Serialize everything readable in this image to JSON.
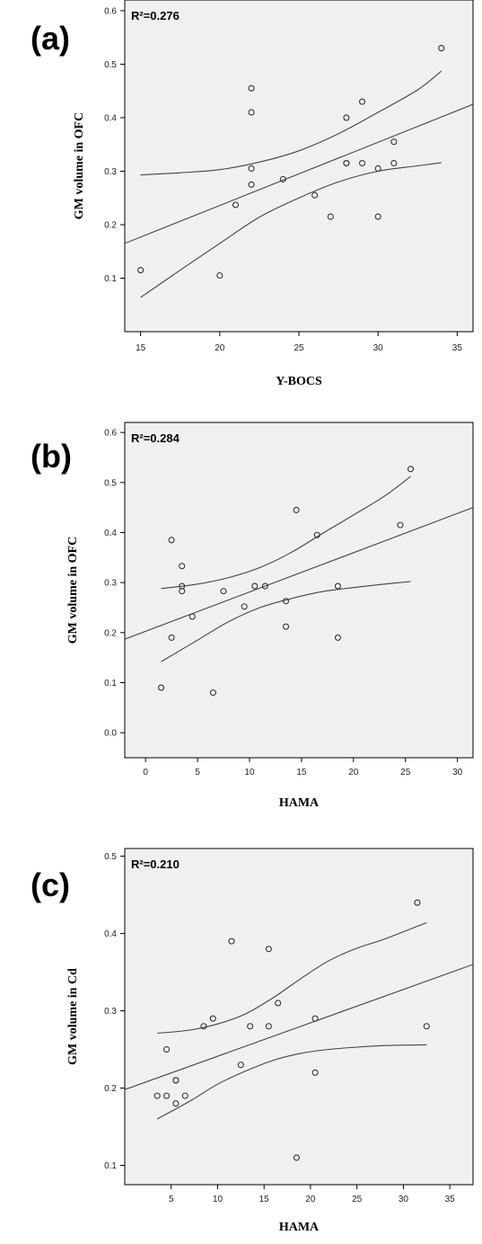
{
  "chart_data": [
    {
      "type": "scatter",
      "panel_label": "(a)",
      "annotation": "R²=0.276",
      "xlabel": "Y-BOCS",
      "ylabel": "GM volume in OFC",
      "xlim": [
        14,
        36
      ],
      "ylim": [
        0.0,
        0.62
      ],
      "xticks": [
        15,
        20,
        25,
        30,
        35
      ],
      "yticks": [
        0.1,
        0.2,
        0.3,
        0.4,
        0.5,
        0.6
      ],
      "ytick_labels": [
        "0.1",
        "0.2",
        "0.3",
        "0.4",
        "0.5",
        "0.6"
      ],
      "points": [
        [
          15,
          0.115
        ],
        [
          20,
          0.105
        ],
        [
          21,
          0.237
        ],
        [
          22,
          0.455
        ],
        [
          22,
          0.41
        ],
        [
          22,
          0.305
        ],
        [
          22,
          0.275
        ],
        [
          24,
          0.285
        ],
        [
          26,
          0.255
        ],
        [
          27,
          0.215
        ],
        [
          28,
          0.4
        ],
        [
          28,
          0.315
        ],
        [
          28,
          0.315
        ],
        [
          29,
          0.43
        ],
        [
          29,
          0.315
        ],
        [
          30,
          0.305
        ],
        [
          30,
          0.215
        ],
        [
          31,
          0.355
        ],
        [
          31,
          0.315
        ],
        [
          34,
          0.53
        ]
      ],
      "fit_line": [
        [
          14,
          0.165
        ],
        [
          36,
          0.425
        ]
      ],
      "ci_upper": [
        [
          15,
          0.293
        ],
        [
          17.5,
          0.297
        ],
        [
          20,
          0.303
        ],
        [
          22.5,
          0.317
        ],
        [
          25,
          0.338
        ],
        [
          27.5,
          0.37
        ],
        [
          30,
          0.41
        ],
        [
          32.5,
          0.452
        ],
        [
          34,
          0.487
        ]
      ],
      "ci_lower": [
        [
          15,
          0.064
        ],
        [
          17.5,
          0.115
        ],
        [
          20,
          0.165
        ],
        [
          22.5,
          0.214
        ],
        [
          25,
          0.25
        ],
        [
          27.5,
          0.28
        ],
        [
          30,
          0.3
        ],
        [
          32.5,
          0.31
        ],
        [
          34,
          0.316
        ]
      ]
    },
    {
      "type": "scatter",
      "panel_label": "(b)",
      "annotation": "R²=0.284",
      "xlabel": "HAMA",
      "ylabel": "GM volume in OFC",
      "xlim": [
        -2,
        31.5
      ],
      "ylim": [
        -0.05,
        0.62
      ],
      "xticks": [
        0,
        5,
        10,
        15,
        20,
        25,
        30
      ],
      "yticks": [
        0.0,
        0.1,
        0.2,
        0.3,
        0.4,
        0.5,
        0.6
      ],
      "ytick_labels": [
        "0.0",
        "0.1",
        "0.2",
        "0.3",
        "0.4",
        "0.5",
        "0.6"
      ],
      "points": [
        [
          1.5,
          0.09
        ],
        [
          2.5,
          0.385
        ],
        [
          2.5,
          0.19
        ],
        [
          3.5,
          0.333
        ],
        [
          3.5,
          0.293
        ],
        [
          3.5,
          0.283
        ],
        [
          4.5,
          0.232
        ],
        [
          6.5,
          0.08
        ],
        [
          7.5,
          0.283
        ],
        [
          9.5,
          0.252
        ],
        [
          10.5,
          0.293
        ],
        [
          11.5,
          0.293
        ],
        [
          13.5,
          0.263
        ],
        [
          13.5,
          0.212
        ],
        [
          14.5,
          0.445
        ],
        [
          16.5,
          0.395
        ],
        [
          18.5,
          0.293
        ],
        [
          18.5,
          0.19
        ],
        [
          24.5,
          0.415
        ],
        [
          25.5,
          0.527
        ]
      ],
      "fit_line": [
        [
          -2,
          0.187
        ],
        [
          31.5,
          0.45
        ]
      ],
      "ci_upper": [
        [
          1.5,
          0.288
        ],
        [
          5,
          0.297
        ],
        [
          8,
          0.31
        ],
        [
          11,
          0.33
        ],
        [
          14,
          0.36
        ],
        [
          17,
          0.398
        ],
        [
          20,
          0.435
        ],
        [
          23,
          0.473
        ],
        [
          25.5,
          0.512
        ]
      ],
      "ci_lower": [
        [
          1.5,
          0.142
        ],
        [
          5,
          0.185
        ],
        [
          8,
          0.222
        ],
        [
          11,
          0.25
        ],
        [
          14,
          0.268
        ],
        [
          17,
          0.282
        ],
        [
          20,
          0.29
        ],
        [
          23,
          0.297
        ],
        [
          25.5,
          0.302
        ]
      ]
    },
    {
      "type": "scatter",
      "panel_label": "(c)",
      "annotation": "R²=0.210",
      "xlabel": "HAMA",
      "ylabel": "GM volume in Cd",
      "xlim": [
        0,
        37.5
      ],
      "ylim": [
        0.075,
        0.51
      ],
      "xticks": [
        5,
        10,
        15,
        20,
        25,
        30,
        35
      ],
      "yticks": [
        0.1,
        0.2,
        0.3,
        0.4,
        0.5
      ],
      "ytick_labels": [
        "0.1",
        "0.2",
        "0.3",
        "0.4",
        "0.5"
      ],
      "points": [
        [
          3.5,
          0.19
        ],
        [
          4.5,
          0.25
        ],
        [
          4.5,
          0.19
        ],
        [
          5.5,
          0.21
        ],
        [
          5.5,
          0.21
        ],
        [
          5.5,
          0.18
        ],
        [
          6.5,
          0.19
        ],
        [
          8.5,
          0.28
        ],
        [
          9.5,
          0.29
        ],
        [
          11.5,
          0.39
        ],
        [
          12.5,
          0.23
        ],
        [
          13.5,
          0.28
        ],
        [
          15.5,
          0.38
        ],
        [
          15.5,
          0.28
        ],
        [
          16.5,
          0.31
        ],
        [
          18.5,
          0.11
        ],
        [
          20.5,
          0.29
        ],
        [
          20.5,
          0.22
        ],
        [
          31.5,
          0.44
        ],
        [
          32.5,
          0.28
        ]
      ],
      "fit_line": [
        [
          0,
          0.198
        ],
        [
          37.5,
          0.36
        ]
      ],
      "ci_upper": [
        [
          3.5,
          0.271
        ],
        [
          7,
          0.275
        ],
        [
          10,
          0.283
        ],
        [
          13,
          0.296
        ],
        [
          16,
          0.317
        ],
        [
          19,
          0.342
        ],
        [
          22,
          0.365
        ],
        [
          25,
          0.381
        ],
        [
          28,
          0.393
        ],
        [
          32.5,
          0.414
        ]
      ],
      "ci_lower": [
        [
          3.5,
          0.16
        ],
        [
          7,
          0.183
        ],
        [
          10,
          0.205
        ],
        [
          13,
          0.222
        ],
        [
          16,
          0.236
        ],
        [
          19,
          0.245
        ],
        [
          22,
          0.25
        ],
        [
          25,
          0.253
        ],
        [
          28,
          0.255
        ],
        [
          32.5,
          0.256
        ]
      ]
    }
  ]
}
